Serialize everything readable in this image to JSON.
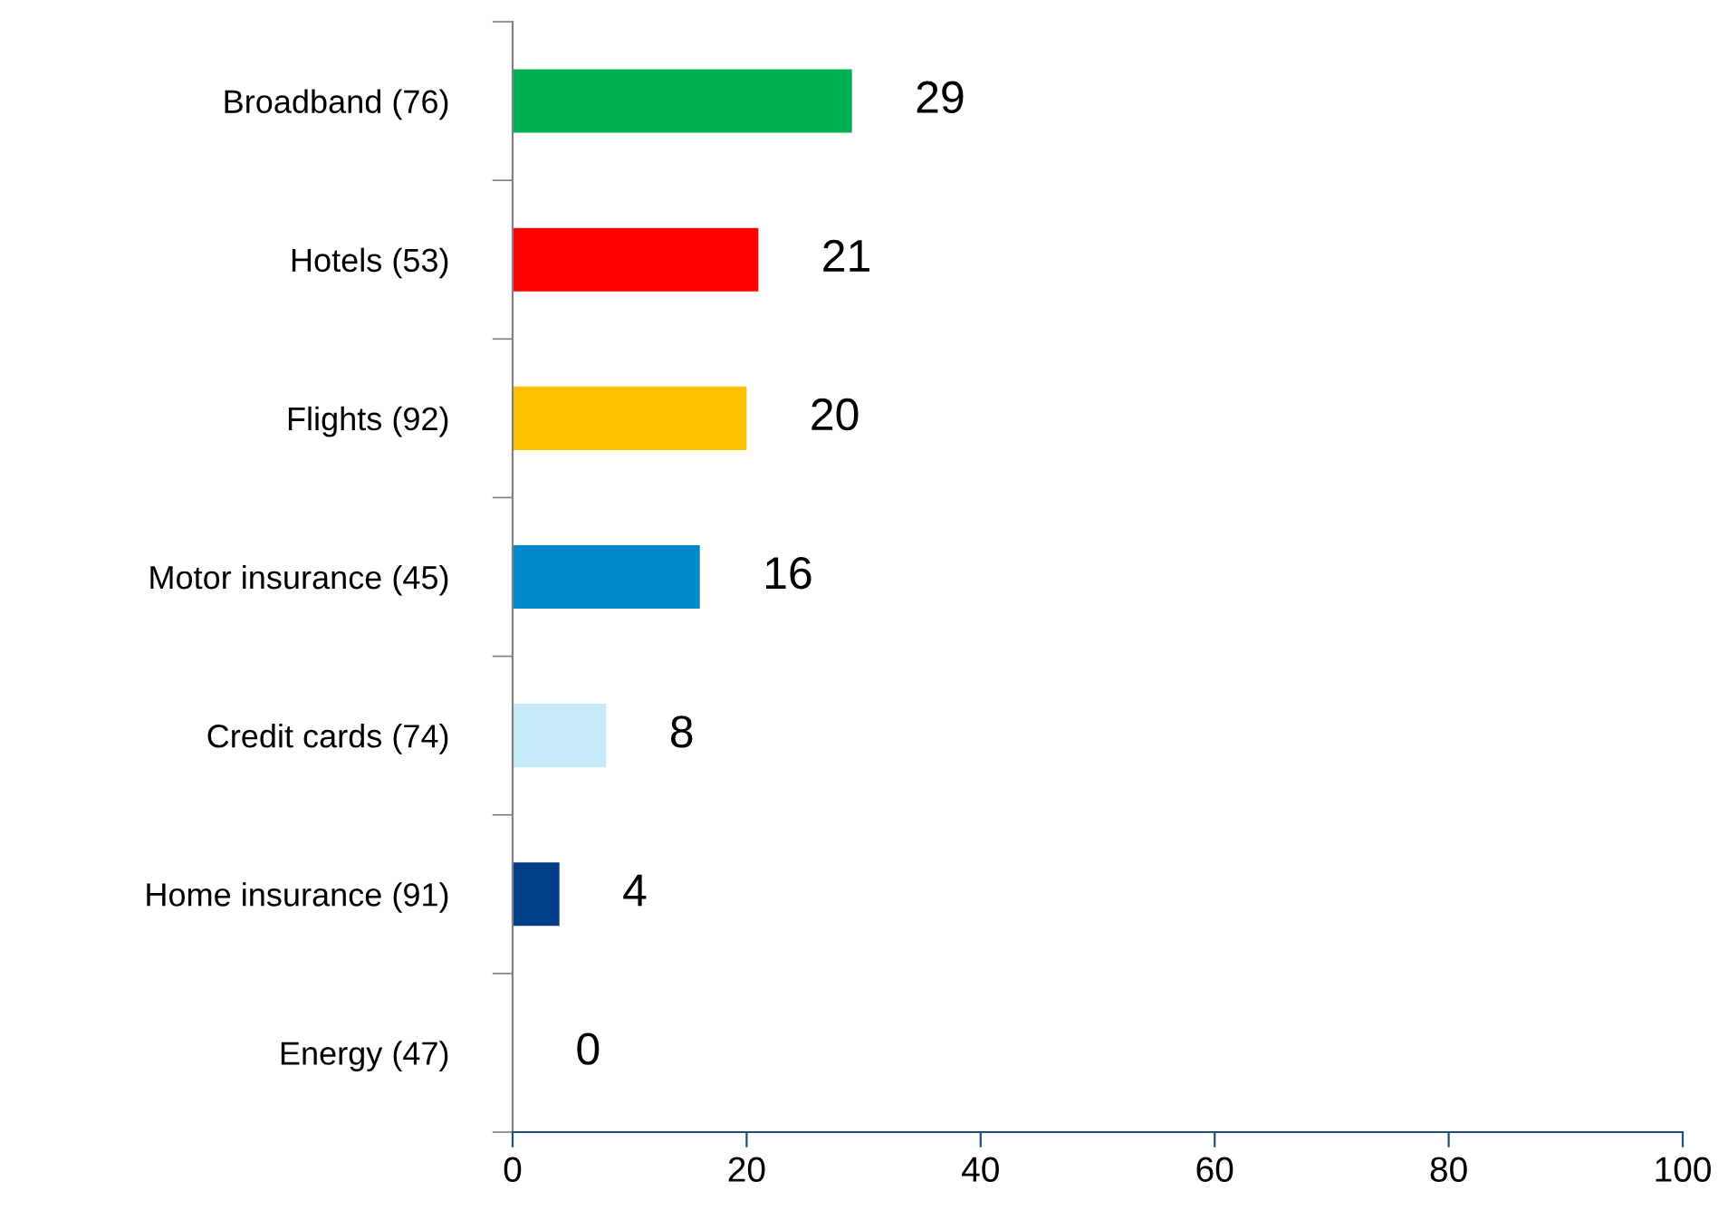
{
  "chart_data": {
    "type": "bar",
    "orientation": "horizontal",
    "categories": [
      "Broadband (76)",
      "Hotels (53)",
      "Flights (92)",
      "Motor insurance (45)",
      "Credit cards (74)",
      "Home insurance (91)",
      "Energy (47)"
    ],
    "values": [
      29,
      21,
      20,
      16,
      8,
      4,
      0
    ],
    "colors": [
      "#00b050",
      "#ff0000",
      "#ffc000",
      "#0088cc",
      "#c5eafa",
      "#003f87",
      "#003f87"
    ],
    "xlim": [
      0,
      100
    ],
    "xticks": [
      0,
      20,
      40,
      60,
      80,
      100
    ],
    "data_labels": true,
    "grid": false,
    "legend": false
  }
}
